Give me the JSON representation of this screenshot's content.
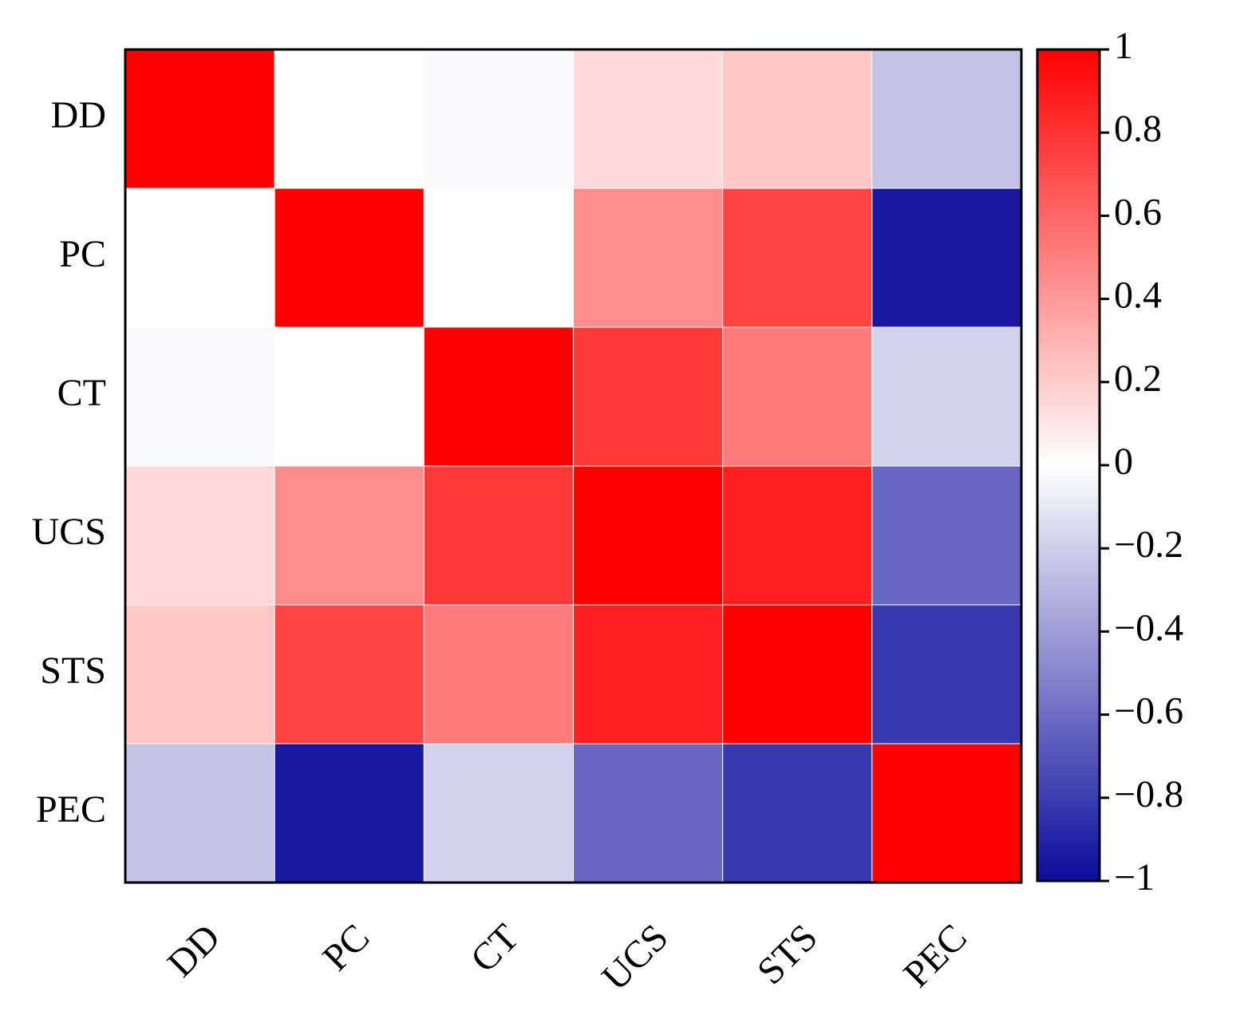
{
  "chart_data": {
    "type": "heatmap",
    "x_categories": [
      "DD",
      "PC",
      "CT",
      "UCS",
      "STS",
      "PEC"
    ],
    "y_categories": [
      "DD",
      "PC",
      "CT",
      "UCS",
      "STS",
      "PEC"
    ],
    "values": [
      [
        1,
        0,
        -0.02,
        0.15,
        0.22,
        -0.25
      ],
      [
        0,
        1,
        0,
        0.45,
        0.74,
        -0.95
      ],
      [
        -0.02,
        0,
        1,
        0.78,
        0.52,
        -0.18
      ],
      [
        0.15,
        0.45,
        0.78,
        1,
        0.88,
        -0.62
      ],
      [
        0.22,
        0.74,
        0.52,
        0.88,
        1,
        -0.82
      ],
      [
        -0.25,
        -0.95,
        -0.18,
        -0.62,
        -0.82,
        1
      ]
    ],
    "colors": {
      "min": "#0c0c9c",
      "mid": "#ffffff",
      "max": "#ff0000"
    },
    "zlim": [
      -1,
      1
    ],
    "zticks": [
      1,
      0.8,
      0.6,
      0.4,
      0.2,
      0,
      {
        "value": -0.2,
        "label": "−0.2"
      },
      {
        "value": -0.4,
        "label": "−0.4"
      },
      {
        "value": -0.6,
        "label": "−0.6"
      },
      {
        "value": -0.8,
        "label": "−0.8"
      },
      {
        "value": -1,
        "label": "−1"
      }
    ]
  }
}
